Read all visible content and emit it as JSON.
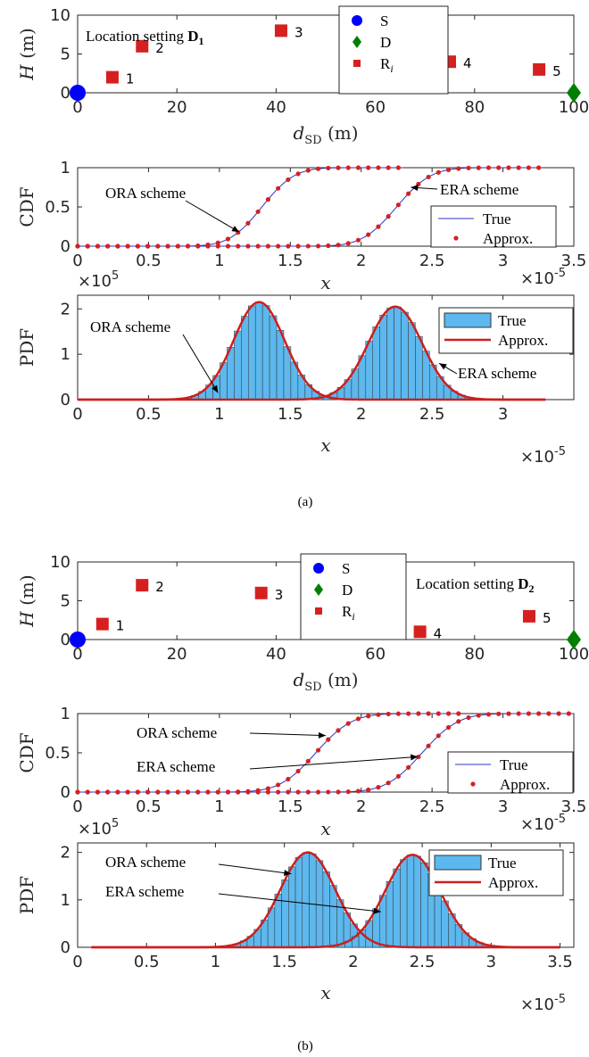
{
  "colors": {
    "source": "#0000ff",
    "destination": "#007f00",
    "relay": "#d62020",
    "true_line": "#2b36c8",
    "approx_dot": "#d62020",
    "pdf_line": "#cc1f1f",
    "hist_fill": "#5cb8ee",
    "hist_edge": "#333333"
  },
  "captions": [
    "(a)",
    "(b)"
  ],
  "chart_data": [
    {
      "type": "scatter",
      "panel": "a-location",
      "xlabel_main": "d",
      "xlabel_sub": "SD",
      "xlabel_unit": "(m)",
      "ylabel_main": "H",
      "ylabel_unit": "(m)",
      "xlim": [
        0,
        100
      ],
      "ylim": [
        0,
        10
      ],
      "xticks": [
        0,
        20,
        40,
        60,
        80,
        100
      ],
      "yticks": [
        0,
        5,
        10
      ],
      "annotation_text": "Location setting",
      "annotation_bold": "D",
      "annotation_sub": "1",
      "legend": [
        "S",
        "D",
        "R",
        "i"
      ],
      "legend_position": "top-center",
      "source": {
        "x": 0,
        "y": 0
      },
      "destination": {
        "x": 100,
        "y": 0
      },
      "relays": [
        {
          "label": "1",
          "x": 7,
          "y": 2
        },
        {
          "label": "2",
          "x": 13,
          "y": 6
        },
        {
          "label": "3",
          "x": 41,
          "y": 8
        },
        {
          "label": "4",
          "x": 75,
          "y": 4
        },
        {
          "label": "5",
          "x": 93,
          "y": 3
        }
      ]
    },
    {
      "type": "line",
      "panel": "a-cdf",
      "ylabel": "CDF",
      "xlabel": "x",
      "xlim": [
        0,
        3.5
      ],
      "ylim": [
        0,
        1
      ],
      "xticks": [
        "0",
        "0.5",
        "1",
        "1.5",
        "2",
        "2.5",
        "3",
        "3.5"
      ],
      "yticks": [
        "0",
        "0.5",
        "1"
      ],
      "x_multiplier_base": "×10",
      "x_multiplier_exp": "-5",
      "legend": [
        "True",
        "Approx."
      ],
      "legend_position": "lower-right",
      "series": [
        {
          "label": "ORA scheme",
          "mean": 1.3,
          "sd": 0.18,
          "x_max": 2.3
        },
        {
          "label": "ERA scheme",
          "mean": 2.25,
          "sd": 0.19,
          "x_max": 3.28
        }
      ],
      "approx_x_min": 0.0,
      "approx_step": 0.0707,
      "annotations": [
        {
          "text": "ORA scheme",
          "target_x": 1.14,
          "target_y": 0.18
        },
        {
          "text": "ERA scheme",
          "target_x": 2.35,
          "target_y": 0.75
        }
      ]
    },
    {
      "type": "area",
      "panel": "a-pdf",
      "ylabel": "PDF",
      "xlabel": "x",
      "xlim": [
        0,
        3.5
      ],
      "ylim": [
        0,
        2.3
      ],
      "xticks": [
        "0",
        "0.5",
        "1",
        "1.5",
        "2",
        "2.5",
        "3"
      ],
      "yticks": [
        "0",
        "1",
        "2"
      ],
      "y_multiplier_base": "×10",
      "y_multiplier_exp": "5",
      "x_multiplier_base": "×10",
      "x_multiplier_exp": "-5",
      "legend": [
        "True",
        "Approx."
      ],
      "legend_position": "top-right",
      "series": [
        {
          "label": "ORA scheme",
          "mean": 1.28,
          "sd": 0.18,
          "peak": 2.15
        },
        {
          "label": "ERA scheme",
          "mean": 2.24,
          "sd": 0.19,
          "peak": 2.05
        }
      ],
      "curve_range": [
        0,
        3.3
      ],
      "annotations": [
        {
          "text": "ORA scheme",
          "target_x": 0.99,
          "target_y": 0.15
        },
        {
          "text": "ERA scheme",
          "target_x": 2.55,
          "target_y": 0.8
        }
      ]
    },
    {
      "type": "scatter",
      "panel": "b-location",
      "xlabel_main": "d",
      "xlabel_sub": "SD",
      "xlabel_unit": "(m)",
      "ylabel_main": "H",
      "ylabel_unit": "(m)",
      "xlim": [
        0,
        100
      ],
      "ylim": [
        0,
        10
      ],
      "xticks": [
        0,
        20,
        40,
        60,
        80,
        100
      ],
      "yticks": [
        0,
        5,
        10
      ],
      "annotation_text": "Location setting",
      "annotation_bold": "D",
      "annotation_sub": "2",
      "legend": [
        "S",
        "D",
        "R",
        "i"
      ],
      "legend_position": "top-center",
      "source": {
        "x": 0,
        "y": 0
      },
      "destination": {
        "x": 100,
        "y": 0
      },
      "relays": [
        {
          "label": "1",
          "x": 5,
          "y": 2
        },
        {
          "label": "2",
          "x": 13,
          "y": 7
        },
        {
          "label": "3",
          "x": 37,
          "y": 6
        },
        {
          "label": "4",
          "x": 69,
          "y": 1
        },
        {
          "label": "5",
          "x": 91,
          "y": 3
        }
      ]
    },
    {
      "type": "line",
      "panel": "b-cdf",
      "ylabel": "CDF",
      "xlabel": "x",
      "xlim": [
        0,
        3.5
      ],
      "ylim": [
        0,
        1
      ],
      "xticks": [
        "0",
        "0.5",
        "1",
        "1.5",
        "2",
        "2.5",
        "3",
        "3.5"
      ],
      "yticks": [
        "0",
        "0.5",
        "1"
      ],
      "x_multiplier_base": "×10",
      "x_multiplier_exp": "-5",
      "legend": [
        "True",
        "Approx."
      ],
      "legend_position": "lower-right",
      "series": [
        {
          "label": "ORA scheme",
          "mean": 1.68,
          "sd": 0.2,
          "x_max": 2.7
        },
        {
          "label": "ERA scheme",
          "mean": 2.43,
          "sd": 0.2,
          "x_max": 3.5
        }
      ],
      "approx_x_min": 0.0,
      "approx_step": 0.0707,
      "annotations": [
        {
          "text": "ORA scheme",
          "target_x": 1.75,
          "target_y": 0.72
        },
        {
          "text": "ERA scheme",
          "target_x": 2.4,
          "target_y": 0.45
        }
      ]
    },
    {
      "type": "area",
      "panel": "b-pdf",
      "ylabel": "PDF",
      "xlabel": "x",
      "xlim": [
        0,
        3.6
      ],
      "ylim": [
        0,
        2.2
      ],
      "xticks": [
        "0",
        "0.5",
        "1",
        "1.5",
        "2",
        "2.5",
        "3",
        "3.5"
      ],
      "yticks": [
        "0",
        "1",
        "2"
      ],
      "y_multiplier_base": "×10",
      "y_multiplier_exp": "5",
      "x_multiplier_base": "×10",
      "x_multiplier_exp": "-5",
      "legend": [
        "True",
        "Approx."
      ],
      "legend_position": "top-right",
      "series": [
        {
          "label": "ORA scheme",
          "mean": 1.67,
          "sd": 0.2,
          "peak": 2.0
        },
        {
          "label": "ERA scheme",
          "mean": 2.43,
          "sd": 0.2,
          "peak": 1.95
        }
      ],
      "curve_range": [
        0.1,
        3.5
      ],
      "annotations": [
        {
          "text": "ORA scheme",
          "target_x": 1.55,
          "target_y": 1.55
        },
        {
          "text": "ERA scheme",
          "target_x": 2.2,
          "target_y": 0.75
        }
      ]
    }
  ]
}
